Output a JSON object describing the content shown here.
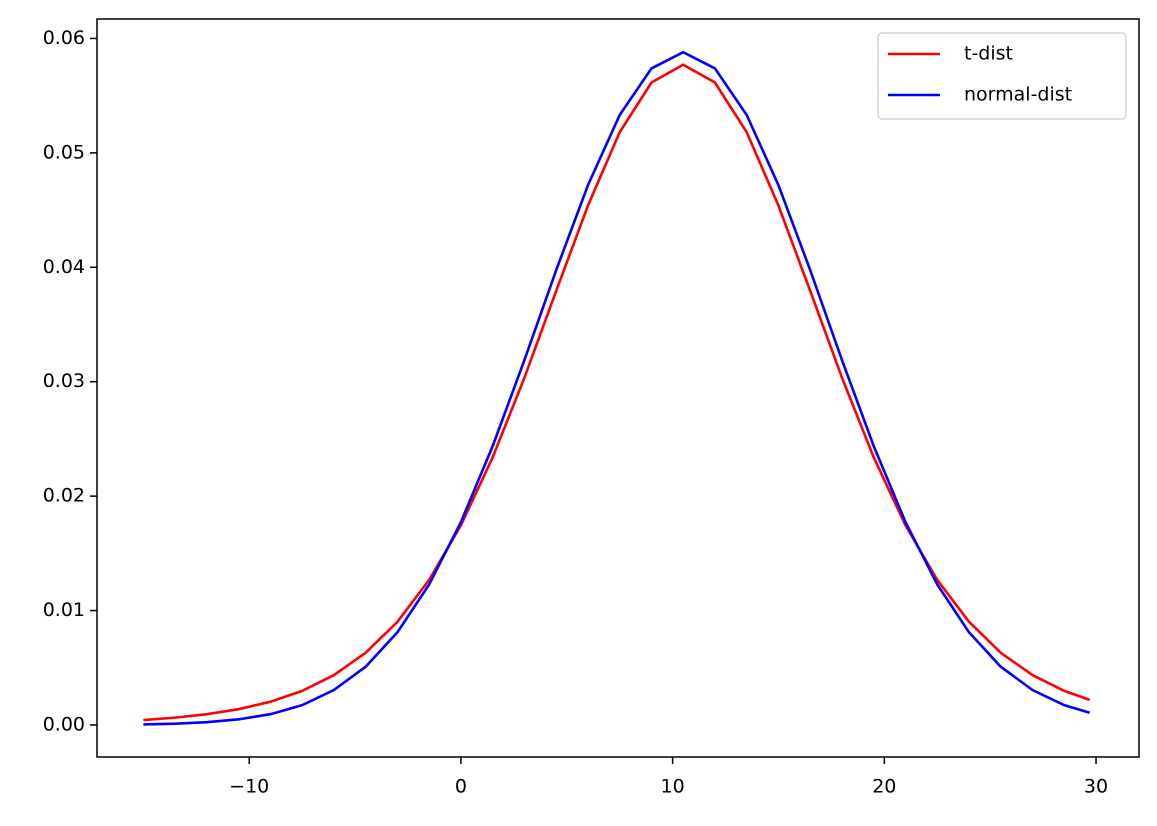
{
  "chart_data": {
    "type": "line",
    "x": [
      -15,
      -13.5,
      -12,
      -10.5,
      -9,
      -7.5,
      -6,
      -4.5,
      -3,
      -1.5,
      0,
      1.5,
      3,
      4.5,
      6,
      7.5,
      9,
      10.5,
      12,
      13.5,
      15,
      16.5,
      18,
      19.5,
      21,
      22.5,
      24,
      25.5,
      27,
      28.5,
      29.7
    ],
    "series": [
      {
        "name": "t-dist",
        "color": "#ff0000",
        "values": [
          0.00043,
          0.00064,
          0.00094,
          0.00138,
          0.00203,
          0.00298,
          0.00436,
          0.00631,
          0.00902,
          0.01268,
          0.01745,
          0.02339,
          0.03035,
          0.03793,
          0.04539,
          0.0518,
          0.05615,
          0.0577,
          0.05615,
          0.0518,
          0.04539,
          0.03793,
          0.03035,
          0.02339,
          0.01745,
          0.01268,
          0.00902,
          0.00631,
          0.00436,
          0.00298,
          0.00219
        ]
      },
      {
        "name": "normal-dist",
        "color": "#0000ff",
        "values": [
          5e-05,
          0.00011,
          0.00024,
          0.00049,
          0.00094,
          0.00173,
          0.00305,
          0.00509,
          0.0081,
          0.01228,
          0.01773,
          0.02437,
          0.03189,
          0.03975,
          0.04717,
          0.05331,
          0.05738,
          0.0588,
          0.05738,
          0.05331,
          0.04717,
          0.03975,
          0.03189,
          0.02437,
          0.01773,
          0.01228,
          0.0081,
          0.00509,
          0.00305,
          0.00173,
          0.00107
        ]
      }
    ],
    "xlim": [
      -17.19,
      32.03
    ],
    "ylim": [
      -0.0028,
      0.0617
    ],
    "xticks": [
      {
        "value": -10,
        "label": "−10"
      },
      0,
      10,
      20,
      30
    ],
    "yticks": [
      {
        "value": 0,
        "label": "0.00"
      },
      {
        "value": 0.01,
        "label": "0.01"
      },
      {
        "value": 0.02,
        "label": "0.02"
      },
      {
        "value": 0.03,
        "label": "0.03"
      },
      {
        "value": 0.04,
        "label": "0.04"
      },
      {
        "value": 0.05,
        "label": "0.05"
      },
      {
        "value": 0.06,
        "label": "0.06"
      }
    ],
    "legend": "upper right"
  }
}
